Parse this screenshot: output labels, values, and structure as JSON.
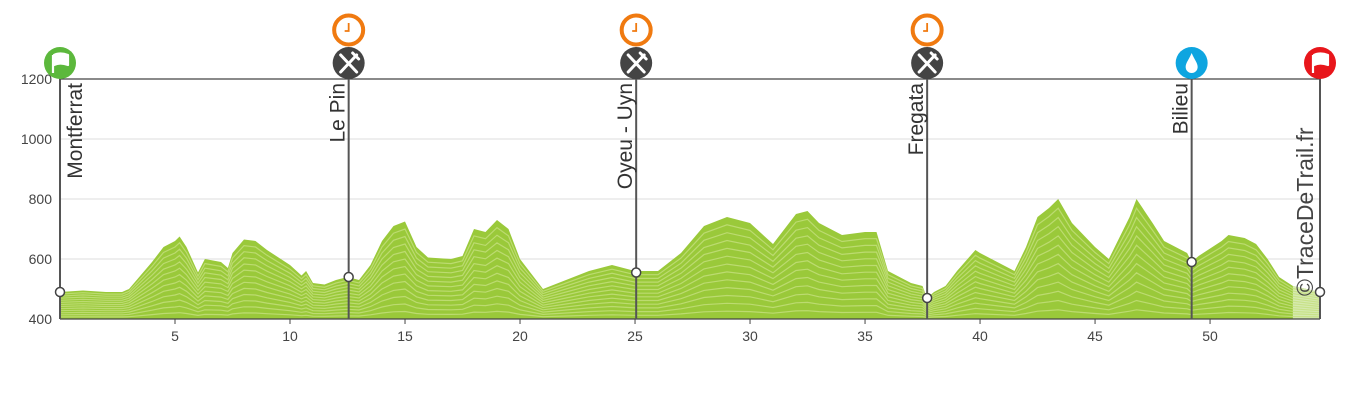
{
  "chart_data": {
    "type": "area",
    "title": "",
    "xlabel": "",
    "ylabel": "",
    "xlim": [
      0,
      54.78
    ],
    "ylim": [
      400,
      1200
    ],
    "grid": true,
    "x_ticks": [
      5,
      10,
      15,
      20,
      25,
      30,
      35,
      40,
      45,
      50
    ],
    "y_ticks": [
      400,
      600,
      800,
      1000,
      1200
    ],
    "colors": {
      "fill": "#9ac93a",
      "contour": "#c4e07e",
      "finish_fill": "#d6eab0",
      "grid": "#dddddd",
      "axis": "#444444"
    },
    "profile": {
      "x": [
        0,
        1,
        2,
        2.7,
        3,
        4,
        4.5,
        5,
        5.2,
        5.5,
        6,
        6.3,
        7,
        7.3,
        7.5,
        8,
        8.5,
        9,
        10,
        10.5,
        10.7,
        11,
        11.5,
        12,
        12.5,
        13,
        13.5,
        14,
        14.5,
        15,
        15.5,
        16,
        17,
        17.5,
        18,
        18.5,
        19,
        19.5,
        20,
        20.5,
        21,
        22,
        23,
        24,
        25,
        26,
        27,
        28,
        29,
        30,
        31,
        32,
        32.5,
        33,
        34,
        35,
        35.5,
        36,
        37,
        37.5,
        37.7,
        38,
        38.5,
        39,
        39.8,
        40,
        41,
        41.5,
        42,
        42.5,
        43,
        43.4,
        44,
        45,
        45.6,
        46.5,
        46.8,
        47.5,
        48,
        49,
        49.2,
        49.5,
        50.5,
        50.8,
        51.5,
        52,
        52.5,
        53,
        53.6,
        54.78
      ],
      "y": [
        490,
        495,
        490,
        490,
        500,
        590,
        640,
        660,
        675,
        640,
        555,
        600,
        590,
        570,
        620,
        665,
        660,
        630,
        580,
        545,
        560,
        520,
        515,
        530,
        540,
        530,
        580,
        660,
        710,
        725,
        640,
        605,
        600,
        610,
        700,
        690,
        730,
        700,
        600,
        550,
        500,
        530,
        560,
        580,
        560,
        560,
        620,
        710,
        740,
        720,
        650,
        750,
        760,
        720,
        680,
        690,
        690,
        560,
        520,
        510,
        470,
        490,
        510,
        560,
        630,
        620,
        580,
        560,
        640,
        740,
        770,
        800,
        720,
        640,
        600,
        740,
        800,
        720,
        660,
        620,
        590,
        610,
        660,
        680,
        670,
        650,
        600,
        540,
        510,
        490
      ]
    },
    "finish_section_start_km": 53.6,
    "waypoints": [
      {
        "name": "Montferrat",
        "km": 0,
        "elevation": 490,
        "icons": [
          "start-flag"
        ],
        "color": "#5cb83c"
      },
      {
        "name": "Le Pin",
        "km": 12.55,
        "elevation": 540,
        "icons": [
          "clock",
          "food"
        ],
        "color": "#444444"
      },
      {
        "name": "Oyeu - Uyn",
        "km": 25.05,
        "elevation": 555,
        "icons": [
          "clock",
          "food"
        ],
        "color": "#444444"
      },
      {
        "name": "Fregata",
        "km": 37.7,
        "elevation": 470,
        "icons": [
          "clock",
          "food"
        ],
        "color": "#444444"
      },
      {
        "name": "Bilieu",
        "km": 49.2,
        "elevation": 590,
        "icons": [
          "water"
        ],
        "color": "#0ea5e0"
      },
      {
        "name": "",
        "km": 54.78,
        "elevation": 490,
        "icons": [
          "finish-flag"
        ],
        "color": "#e8161b"
      }
    ],
    "clock_color": "#f07a10",
    "watermark": "©TraceDeTrail.fr"
  }
}
